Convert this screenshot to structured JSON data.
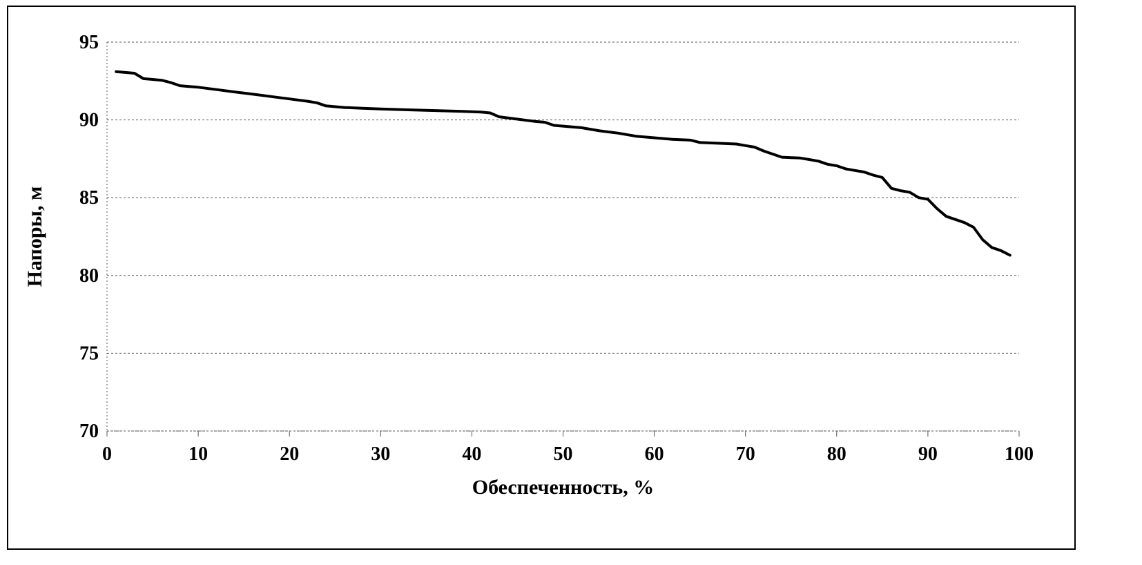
{
  "chart_data": {
    "type": "line",
    "title": "",
    "xlabel": "Обеспеченность, %",
    "ylabel": "Напоры, м",
    "xlim": [
      0,
      100
    ],
    "ylim": [
      70,
      95
    ],
    "xticks": [
      0,
      10,
      20,
      30,
      40,
      50,
      60,
      70,
      80,
      90,
      100
    ],
    "yticks": [
      70,
      75,
      80,
      85,
      90,
      95
    ],
    "xtick_labels": [
      "0",
      "10",
      "20",
      "30",
      "40",
      "50",
      "60",
      "70",
      "80",
      "90",
      "100"
    ],
    "ytick_labels": [
      "70",
      "75",
      "80",
      "85",
      "90",
      "95"
    ],
    "grid": "horizontal",
    "line_color": "#000000",
    "series": [
      {
        "x": [
          1,
          2,
          3,
          4,
          5,
          6,
          7,
          8,
          9,
          10,
          12,
          14,
          16,
          18,
          20,
          22,
          23,
          24,
          26,
          28,
          30,
          33,
          36,
          39,
          41,
          42,
          43,
          45,
          47,
          48,
          49,
          50,
          52,
          54,
          56,
          58,
          60,
          62,
          64,
          65,
          67,
          69,
          70,
          71,
          72,
          73,
          74,
          76,
          77,
          78,
          79,
          80,
          81,
          82,
          83,
          84,
          85,
          86,
          87,
          88,
          89,
          90,
          91,
          92,
          93,
          94,
          95,
          96,
          97,
          98,
          99
        ],
        "y": [
          93.1,
          93.05,
          93.0,
          92.65,
          92.6,
          92.55,
          92.4,
          92.2,
          92.15,
          92.1,
          91.95,
          91.8,
          91.65,
          91.5,
          91.35,
          91.2,
          91.1,
          90.9,
          90.8,
          90.75,
          90.7,
          90.65,
          90.6,
          90.55,
          90.5,
          90.45,
          90.2,
          90.05,
          89.9,
          89.85,
          89.65,
          89.6,
          89.5,
          89.3,
          89.15,
          88.95,
          88.85,
          88.75,
          88.7,
          88.55,
          88.5,
          88.45,
          88.35,
          88.25,
          88.0,
          87.8,
          87.6,
          87.55,
          87.45,
          87.35,
          87.15,
          87.05,
          86.85,
          86.75,
          86.65,
          86.45,
          86.3,
          85.6,
          85.45,
          85.35,
          85.0,
          84.9,
          84.3,
          83.8,
          83.6,
          83.4,
          83.1,
          82.3,
          81.8,
          81.6,
          81.3
        ]
      }
    ]
  }
}
